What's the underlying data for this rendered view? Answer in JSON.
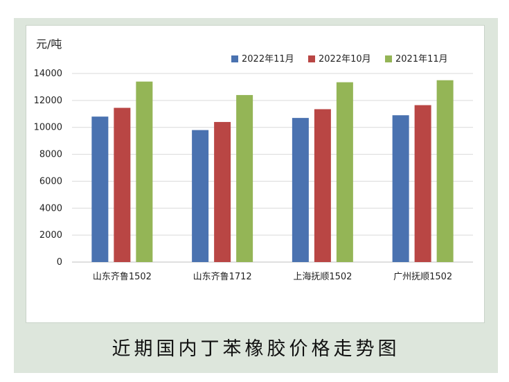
{
  "caption": "近期国内丁苯橡胶价格走势图",
  "chart_data": {
    "type": "bar",
    "unit_label": "元/吨",
    "categories": [
      "山东齐鲁1502",
      "山东齐鲁1712",
      "上海抚顺1502",
      "广州抚顺1502"
    ],
    "series": [
      {
        "name": "2022年11月",
        "color": "#4a72b0",
        "values": [
          10800,
          9800,
          10700,
          10900
        ]
      },
      {
        "name": "2022年10月",
        "color": "#b94644",
        "values": [
          11450,
          10400,
          11350,
          11650
        ]
      },
      {
        "name": "2021年11月",
        "color": "#94b556",
        "values": [
          13400,
          12400,
          13350,
          13500
        ]
      }
    ],
    "ylim": [
      0,
      14000
    ],
    "yticks": [
      0,
      2000,
      4000,
      6000,
      8000,
      10000,
      12000,
      14000
    ],
    "grid": true,
    "legend_position": "top-right"
  }
}
